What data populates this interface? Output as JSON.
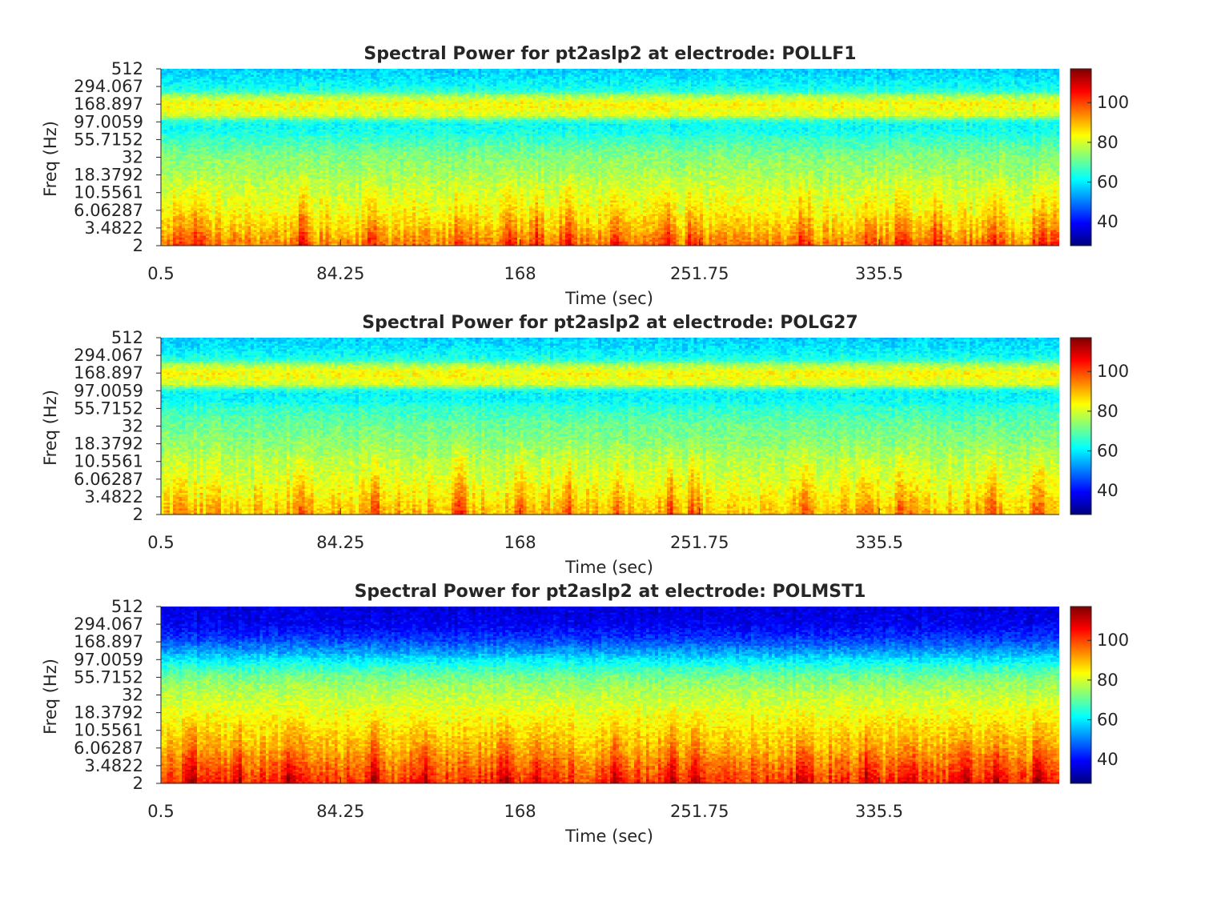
{
  "chart_data": [
    {
      "type": "heatmap",
      "title": "Spectral Power for pt2aslp2 at electrode: POLLF1",
      "xlabel": "Time (sec)",
      "ylabel": "Freq (Hz)",
      "x_ticks": [
        "0.5",
        "84.25",
        "168",
        "251.75",
        "335.5"
      ],
      "x_tick_values": [
        0.5,
        84.25,
        168,
        251.75,
        335.5
      ],
      "xlim": [
        0.5,
        419.5
      ],
      "y_ticks": [
        "2",
        "3.4822",
        "6.06287",
        "10.5561",
        "18.3792",
        "32",
        "55.7152",
        "97.0059",
        "168.897",
        "294.067",
        "512"
      ],
      "y_tick_values": [
        2,
        3.4822,
        6.06287,
        10.5561,
        18.3792,
        32,
        55.7152,
        97.0059,
        168.897,
        294.067,
        512
      ],
      "y_scale": "log",
      "ylim": [
        2,
        512
      ],
      "colorbar": {
        "ticks": [
          "40",
          "60",
          "80",
          "100"
        ],
        "tick_values": [
          40,
          60,
          80,
          100
        ],
        "clim": [
          28,
          117
        ],
        "colormap": "jet"
      },
      "power_profile": {
        "freqs": [
          2,
          3.5,
          6,
          10.6,
          18.4,
          32,
          55.7,
          70,
          90,
          97,
          120,
          150,
          169,
          210,
          250,
          294,
          400,
          512
        ],
        "power": [
          95,
          88,
          83,
          80,
          76,
          73,
          67,
          63,
          62,
          64,
          80,
          83,
          84,
          78,
          66,
          62,
          59,
          57
        ]
      },
      "bursts_at_time": [
        10,
        18,
        66,
        100,
        140,
        163,
        176,
        190,
        213,
        238,
        249,
        300,
        330,
        346,
        362,
        388,
        410,
        418
      ]
    },
    {
      "type": "heatmap",
      "title": "Spectral Power for pt2aslp2 at electrode: POLG27",
      "xlabel": "Time (sec)",
      "ylabel": "Freq (Hz)",
      "x_ticks": [
        "0.5",
        "84.25",
        "168",
        "251.75",
        "335.5"
      ],
      "x_tick_values": [
        0.5,
        84.25,
        168,
        251.75,
        335.5
      ],
      "xlim": [
        0.5,
        419.5
      ],
      "y_ticks": [
        "2",
        "3.4822",
        "6.06287",
        "10.5561",
        "18.3792",
        "32",
        "55.7152",
        "97.0059",
        "168.897",
        "294.067",
        "512"
      ],
      "y_tick_values": [
        2,
        3.4822,
        6.06287,
        10.5561,
        18.3792,
        32,
        55.7152,
        97.0059,
        168.897,
        294.067,
        512
      ],
      "y_scale": "log",
      "ylim": [
        2,
        512
      ],
      "colorbar": {
        "ticks": [
          "40",
          "60",
          "80",
          "100"
        ],
        "tick_values": [
          40,
          60,
          80,
          100
        ],
        "clim": [
          28,
          117
        ],
        "colormap": "jet"
      },
      "power_profile": {
        "freqs": [
          2,
          3.5,
          6,
          10.6,
          18.4,
          32,
          55.7,
          70,
          90,
          97,
          120,
          150,
          169,
          210,
          250,
          294,
          400,
          512
        ],
        "power": [
          90,
          85,
          81,
          78,
          74,
          71,
          66,
          62,
          61,
          63,
          80,
          83,
          84,
          78,
          66,
          62,
          59,
          57
        ]
      },
      "bursts_at_time": [
        10,
        66,
        100,
        140,
        168,
        190,
        213,
        238,
        249,
        300,
        330,
        346,
        388,
        410
      ]
    },
    {
      "type": "heatmap",
      "title": "Spectral Power for pt2aslp2 at electrode: POLMST1",
      "xlabel": "Time (sec)",
      "ylabel": "Freq (Hz)",
      "x_ticks": [
        "0.5",
        "84.25",
        "168",
        "251.75",
        "335.5"
      ],
      "x_tick_values": [
        0.5,
        84.25,
        168,
        251.75,
        335.5
      ],
      "xlim": [
        0.5,
        419.5
      ],
      "y_ticks": [
        "2",
        "3.4822",
        "6.06287",
        "10.5561",
        "18.3792",
        "32",
        "55.7152",
        "97.0059",
        "168.897",
        "294.067",
        "512"
      ],
      "y_tick_values": [
        2,
        3.4822,
        6.06287,
        10.5561,
        18.3792,
        32,
        55.7152,
        97.0059,
        168.897,
        294.067,
        512
      ],
      "y_scale": "log",
      "ylim": [
        2,
        512
      ],
      "colorbar": {
        "ticks": [
          "40",
          "60",
          "80",
          "100"
        ],
        "tick_values": [
          40,
          60,
          80,
          100
        ],
        "clim": [
          28,
          117
        ],
        "colormap": "jet"
      },
      "power_profile": {
        "freqs": [
          2,
          3.5,
          6,
          10.6,
          18.4,
          32,
          55.7,
          97,
          120,
          169,
          250,
          294,
          400,
          512
        ],
        "power": [
          102,
          96,
          90,
          86,
          82,
          78,
          72,
          60,
          54,
          46,
          40,
          38,
          37,
          36
        ]
      },
      "bursts_at_time": [
        15,
        36,
        60,
        100,
        124,
        160,
        176,
        213,
        238,
        250,
        300,
        330,
        350,
        376,
        390,
        410
      ]
    }
  ]
}
